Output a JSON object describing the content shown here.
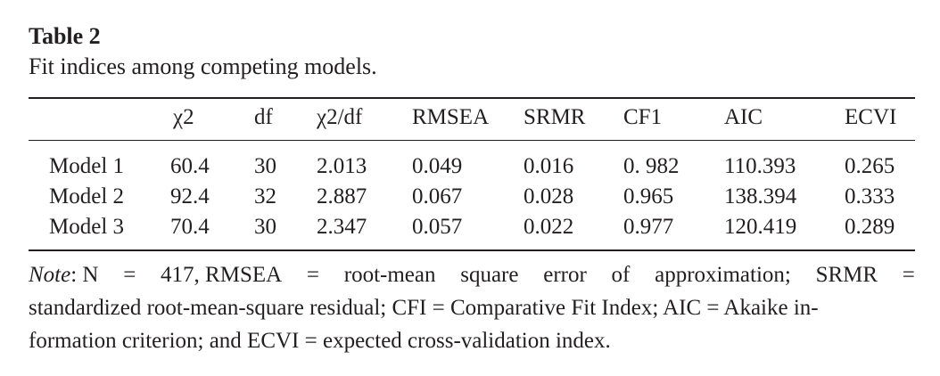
{
  "caption": {
    "title": "Table 2",
    "text": "Fit indices among competing models."
  },
  "table": {
    "headers": [
      "",
      "χ2",
      "df",
      "χ2/df",
      "RMSEA",
      "SRMR",
      "CF1",
      "AIC",
      "ECVI"
    ],
    "rows": [
      [
        "Model 1",
        "60.4",
        "30",
        "2.013",
        "0.049",
        "0.016",
        "0. 982",
        "110.393",
        "0.265"
      ],
      [
        "Model 2",
        "92.4",
        "32",
        "2.887",
        "0.067",
        "0.028",
        "0.965",
        "138.394",
        "0.333"
      ],
      [
        "Model 3",
        "70.4",
        "30",
        "2.347",
        "0.057",
        "0.022",
        "0.977",
        "120.419",
        "0.289"
      ]
    ]
  },
  "note": {
    "label": "Note",
    "line1_words": [
      ": N",
      "=",
      "417, RMSEA",
      "=",
      "root-mean",
      "square",
      "error",
      "of",
      "approximation;",
      "SRMR",
      "="
    ],
    "line2": "standardized root-mean-square residual; CFI = Comparative Fit Index; AIC = Akaike in-",
    "line3": "formation criterion; and ECVI = expected cross-validation index."
  }
}
